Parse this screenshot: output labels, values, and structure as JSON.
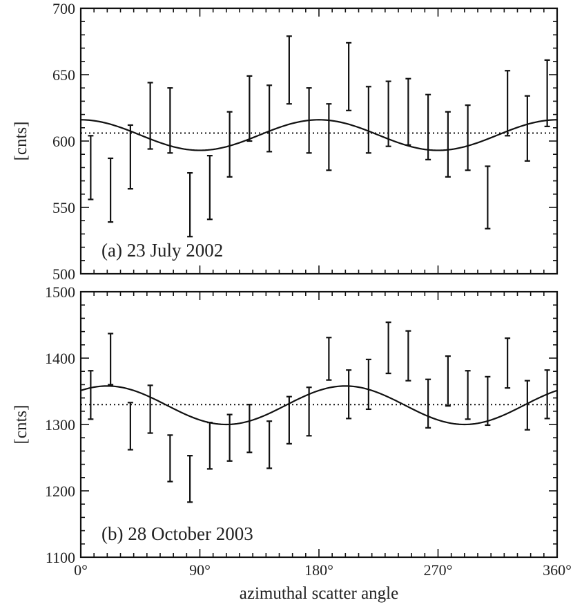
{
  "chart_data": [
    {
      "type": "scatter",
      "panel_label": "(a) 23 July 2002",
      "ylabel": "[cnts]",
      "xlabel": "",
      "xlim": [
        0,
        360
      ],
      "ylim": [
        500,
        700
      ],
      "y_ticks": [
        "500",
        "550",
        "600",
        "650",
        "700"
      ],
      "y_tick_values": [
        500,
        550,
        600,
        650,
        700
      ],
      "mean": 606,
      "fit": {
        "mean": 604.5,
        "amplitude": 11.5,
        "phase_deg": 0
      },
      "x": [
        7.5,
        22.5,
        37.5,
        52.5,
        67.5,
        82.5,
        97.5,
        112.5,
        127.5,
        142.5,
        157.5,
        172.5,
        187.5,
        202.5,
        217.5,
        232.5,
        247.5,
        262.5,
        277.5,
        292.5,
        307.5,
        322.5,
        337.5,
        352.5
      ],
      "low": [
        556,
        539,
        564,
        594,
        591,
        528,
        541,
        573,
        600,
        592,
        628,
        591,
        578,
        623,
        591,
        596,
        597,
        586,
        573,
        578,
        534,
        604,
        585,
        611
      ],
      "high": [
        604,
        587,
        612,
        644,
        640,
        576,
        589,
        622,
        649,
        642,
        679,
        640,
        628,
        674,
        641,
        645,
        647,
        635,
        622,
        627,
        581,
        653,
        634,
        661
      ]
    },
    {
      "type": "scatter",
      "panel_label": "(b) 28 October 2003",
      "ylabel": "[cnts]",
      "xlabel": "azimuthal scatter angle",
      "xlim": [
        0,
        360
      ],
      "ylim": [
        1100,
        1500
      ],
      "y_ticks": [
        "1100",
        "1200",
        "1300",
        "1400",
        "1500"
      ],
      "y_tick_values": [
        1100,
        1200,
        1300,
        1400,
        1500
      ],
      "x_ticks": [
        "0°",
        "90°",
        "180°",
        "270°",
        "360°"
      ],
      "x_tick_values": [
        0,
        90,
        180,
        270,
        360
      ],
      "mean": 1330,
      "fit": {
        "mean": 1329,
        "amplitude": 29,
        "phase_deg": 20
      },
      "x": [
        7.5,
        22.5,
        37.5,
        52.5,
        67.5,
        82.5,
        97.5,
        112.5,
        127.5,
        142.5,
        157.5,
        172.5,
        187.5,
        202.5,
        217.5,
        232.5,
        247.5,
        262.5,
        277.5,
        292.5,
        307.5,
        322.5,
        337.5,
        352.5
      ],
      "low": [
        1308,
        1360,
        1262,
        1287,
        1214,
        1183,
        1233,
        1245,
        1258,
        1234,
        1271,
        1283,
        1367,
        1309,
        1323,
        1377,
        1366,
        1295,
        1328,
        1308,
        1299,
        1355,
        1292,
        1309
      ],
      "high": [
        1381,
        1437,
        1333,
        1359,
        1284,
        1253,
        1303,
        1315,
        1330,
        1305,
        1342,
        1356,
        1431,
        1382,
        1398,
        1454,
        1441,
        1368,
        1403,
        1381,
        1372,
        1430,
        1366,
        1382
      ]
    }
  ]
}
